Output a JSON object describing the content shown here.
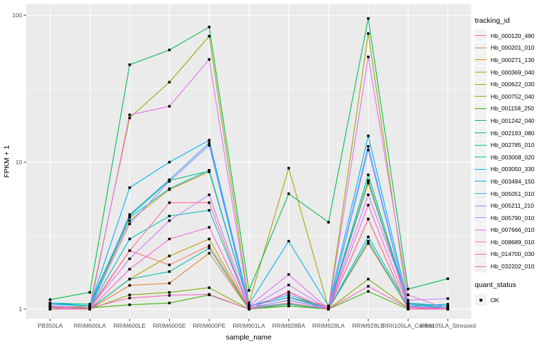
{
  "figure": {
    "background": "#FFFFFF",
    "panel_background": "#EBEBEB",
    "grid_color": "#FFFFFF",
    "tick_color": "#333333",
    "axis_text_color": "#4D4D4D",
    "axis_title_color": "#000000",
    "point_color": "#000000"
  },
  "legend": {
    "tracking_title": "tracking_id",
    "quant_title": "quant_status",
    "quant_items": [
      {
        "label": "OK"
      }
    ]
  },
  "chart_data": {
    "type": "line",
    "title": "",
    "xlabel": "sample_name",
    "ylabel": "FPKM + 1",
    "y_scale": "log10",
    "y_ticks": [
      1,
      10,
      100
    ],
    "ylim": [
      0.94,
      120
    ],
    "grid": "major-and-minor-on",
    "legend_position": "right",
    "point_shape": "filled-black-square",
    "categories": [
      "PB350LA",
      "RRIM600LA",
      "RRIM600LE",
      "RRIM600SE",
      "RRIM600PE",
      "RRIM901LA",
      "RRIM928BA",
      "RRIM928LA",
      "RRIM928LE",
      "RRII105LA_Control",
      "RRII105LA_Stressed"
    ],
    "series": [
      {
        "name": "Hb_000120_480",
        "color": "#F8766D",
        "values": [
          1.05,
          1.02,
          2.5,
          2.0,
          2.7,
          1.02,
          1.15,
          1.0,
          7.3,
          1.05,
          1.0
        ]
      },
      {
        "name": "Hb_000201_010",
        "color": "#EA8331",
        "values": [
          1.0,
          1.0,
          1.45,
          1.5,
          2.4,
          1.0,
          1.1,
          1.0,
          2.8,
          1.02,
          1.0
        ]
      },
      {
        "name": "Hb_000271_130",
        "color": "#D89000",
        "values": [
          1.1,
          1.05,
          4.0,
          6.5,
          8.6,
          1.05,
          1.2,
          1.05,
          7.2,
          1.1,
          1.02
        ]
      },
      {
        "name": "Hb_000369_040",
        "color": "#C09B00",
        "values": [
          1.0,
          1.0,
          1.6,
          2.3,
          3.0,
          1.0,
          1.1,
          1.0,
          4.1,
          1.0,
          1.0
        ]
      },
      {
        "name": "Hb_000622_030",
        "color": "#A3A500",
        "values": [
          1.02,
          1.05,
          20,
          35,
          72,
          1.1,
          9.1,
          1.02,
          75,
          1.05,
          1.0
        ]
      },
      {
        "name": "Hb_000752_040",
        "color": "#7CAE00",
        "values": [
          1.05,
          1.0,
          1.25,
          1.3,
          1.4,
          1.0,
          1.05,
          1.0,
          1.6,
          1.02,
          1.0
        ]
      },
      {
        "name": "Hb_001158_250",
        "color": "#39B600",
        "values": [
          1.0,
          1.02,
          1.07,
          1.1,
          1.25,
          1.0,
          1.05,
          1.0,
          1.32,
          1.0,
          1.0
        ]
      },
      {
        "name": "Hb_001242_040",
        "color": "#00BB4E",
        "values": [
          1.16,
          1.3,
          46,
          58,
          83,
          1.34,
          6.1,
          3.9,
          95,
          1.37,
          1.61
        ]
      },
      {
        "name": "Hb_002193_080",
        "color": "#00BF7D",
        "values": [
          1.1,
          1.08,
          4.3,
          7.5,
          8.7,
          1.05,
          1.2,
          1.02,
          8.2,
          1.1,
          1.05
        ]
      },
      {
        "name": "Hb_002785_010",
        "color": "#00C1A3",
        "values": [
          1.02,
          1.0,
          1.6,
          1.8,
          2.6,
          1.0,
          1.08,
          1.0,
          2.9,
          1.02,
          1.0
        ]
      },
      {
        "name": "Hb_003008_020",
        "color": "#00BFC4",
        "values": [
          1.05,
          1.02,
          3.0,
          4.3,
          4.7,
          1.02,
          1.1,
          1.0,
          3.1,
          1.05,
          1.08
        ]
      },
      {
        "name": "Hb_003050_330",
        "color": "#00BAE0",
        "values": [
          1.08,
          1.05,
          4.2,
          6.6,
          8.8,
          1.05,
          1.25,
          1.02,
          7.5,
          1.08,
          1.02
        ]
      },
      {
        "name": "Hb_003494_150",
        "color": "#00B0F6",
        "values": [
          1.1,
          1.05,
          6.7,
          10,
          14.1,
          1.08,
          2.9,
          1.05,
          15.1,
          1.1,
          1.05
        ]
      },
      {
        "name": "Hb_005051_010",
        "color": "#35A2FF",
        "values": [
          1.05,
          1.02,
          4.4,
          7.6,
          13.5,
          1.05,
          1.2,
          1.0,
          12.8,
          1.05,
          1.02
        ]
      },
      {
        "name": "Hb_005211_210",
        "color": "#9590FF",
        "values": [
          1.04,
          1.02,
          3.8,
          7.4,
          13.0,
          1.02,
          1.15,
          1.0,
          12.1,
          1.04,
          1.0
        ]
      },
      {
        "name": "Hb_005790_010",
        "color": "#C77CFF",
        "values": [
          1.05,
          1.02,
          2.2,
          4.0,
          6.0,
          1.02,
          1.46,
          1.0,
          6.0,
          1.15,
          1.18
        ]
      },
      {
        "name": "Hb_007666_010",
        "color": "#E76BF3",
        "values": [
          1.0,
          1.0,
          21,
          24,
          50,
          1.05,
          1.72,
          1.0,
          52,
          1.25,
          1.0
        ]
      },
      {
        "name": "Hb_008689_010",
        "color": "#FA62DB",
        "values": [
          1.02,
          1.0,
          1.87,
          3.0,
          3.6,
          1.0,
          1.3,
          1.0,
          5.1,
          1.05,
          1.0
        ]
      },
      {
        "name": "Hb_014700_030",
        "color": "#FF62BC",
        "values": [
          1.05,
          1.02,
          1.19,
          1.24,
          1.26,
          1.0,
          1.31,
          1.0,
          1.43,
          1.02,
          1.0
        ]
      },
      {
        "name": "Hb_032202_010",
        "color": "#FF6A98",
        "values": [
          1.0,
          1.0,
          2.5,
          5.3,
          5.3,
          1.0,
          1.1,
          1.0,
          4.1,
          1.0,
          1.0
        ]
      }
    ]
  }
}
